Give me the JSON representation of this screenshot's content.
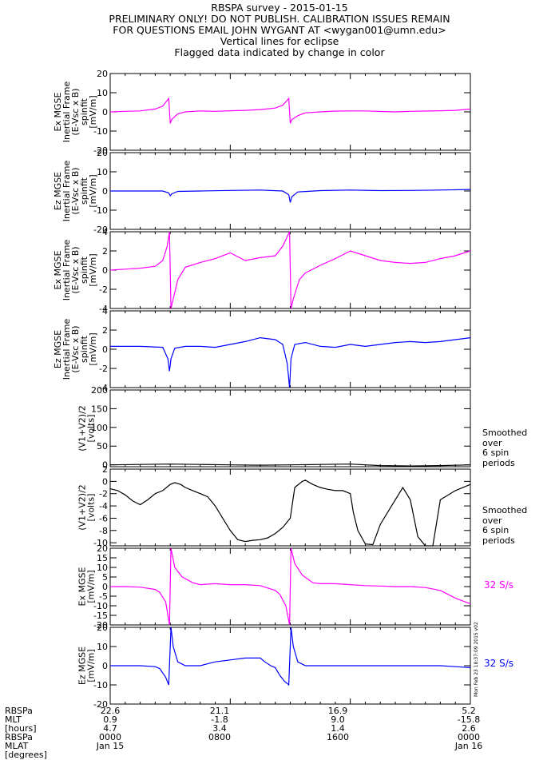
{
  "header": {
    "line1": "RBSPA survey - 2015-01-15",
    "line2": "PRELIMINARY ONLY! DO NOT PUBLISH. CALIBRATION ISSUES REMAIN",
    "line3": "FOR QUESTIONS EMAIL JOHN WYGANT AT <wygan001@umn.edu>",
    "line4": "Vertical lines for eclipse",
    "line5": "Flagged data indicated by change in color"
  },
  "colors": {
    "magenta": "#ff00ff",
    "blue": "#0000ff",
    "black": "#000000"
  },
  "side_notes": {
    "smoothed_1": [
      "Smoothed",
      "over",
      "6 spin",
      "periods"
    ],
    "smoothed_2": [
      "Smoothed",
      "over",
      "6 spin",
      "periods"
    ],
    "rate_7": "32 S/s",
    "rate_8": "32 S/s"
  },
  "stamp": "Mon Feb 23 18:37:09 2015 v02",
  "footer": {
    "labels": [
      "RBSPa",
      "MLT",
      "[hours]",
      "RBSPa",
      "MLAT",
      "[degrees]"
    ],
    "columns": [
      {
        "lines": [
          "22.6",
          "0.9",
          "4.7",
          "0000",
          "Jan 15"
        ]
      },
      {
        "lines": [
          "21.1",
          "-1.8",
          "3.4",
          "0800",
          ""
        ]
      },
      {
        "lines": [
          "16.9",
          "9.0",
          "1.4",
          "1600",
          ""
        ]
      },
      {
        "lines": [
          "5.2",
          "-15.8",
          "2.6",
          "0000",
          "Jan 16"
        ]
      }
    ]
  },
  "chart_data": [
    {
      "type": "line",
      "ylabel": "Ex MGSE Inertial Frame (E-Vsc x B) spinfit [mV/m]",
      "yticks": [
        -20,
        -10,
        0,
        10,
        20
      ],
      "ylim": [
        -20,
        20
      ],
      "color": "magenta",
      "series": [
        {
          "x": [
            0,
            1,
            2,
            3,
            3.5,
            3.9,
            4,
            4.1,
            4.5,
            5,
            6,
            7,
            8,
            9,
            10,
            11,
            11.5,
            11.9,
            12,
            12.1,
            12.5,
            13,
            14,
            15,
            16,
            17,
            18,
            19,
            20,
            21,
            22,
            23,
            24
          ],
          "values": [
            0,
            0.3,
            0.5,
            1.5,
            3,
            7,
            -6,
            -4,
            -1,
            0,
            0.5,
            0.3,
            0.6,
            0.8,
            1.2,
            2,
            3.5,
            7,
            -6,
            -4,
            -2,
            -0.5,
            0,
            0.4,
            0.5,
            0.5,
            0.2,
            0,
            0.3,
            0.4,
            0.6,
            0.8,
            1.5
          ]
        }
      ]
    },
    {
      "type": "line",
      "ylabel": "Ez MGSE Inertial Frame (E-Vsc x B) spinfit [mV/m]",
      "yticks": [
        -20,
        -10,
        0,
        10,
        20
      ],
      "ylim": [
        -20,
        20
      ],
      "color": "blue",
      "series": [
        {
          "x": [
            0,
            2,
            3.5,
            3.9,
            4,
            4.1,
            4.5,
            6,
            8,
            10,
            11.5,
            11.9,
            12,
            12.1,
            12.5,
            14,
            16,
            18,
            20,
            22,
            24
          ],
          "values": [
            0,
            0,
            0,
            -1,
            -2.5,
            -1.5,
            -0.2,
            0,
            0.3,
            0.5,
            0,
            -2,
            -6,
            -3,
            -0.5,
            0.2,
            0.5,
            0.2,
            0.3,
            0.5,
            0.8
          ]
        }
      ]
    },
    {
      "type": "line",
      "ylabel": "Ex MGSE Inertial Frame (E-Vsc x B) spinfit [mV/m]",
      "yticks": [
        -4,
        -2,
        0,
        2,
        4
      ],
      "ylim": [
        -4,
        4
      ],
      "color": "magenta",
      "series": [
        {
          "x": [
            0,
            1,
            2,
            3,
            3.5,
            3.8,
            3.95,
            4.05,
            4.2,
            4.5,
            5,
            6,
            7,
            8,
            9,
            10,
            11,
            11.5,
            11.8,
            11.95,
            12.05,
            12.2,
            12.6,
            13,
            14,
            15,
            16,
            17,
            18,
            19,
            20,
            21,
            22,
            23,
            24
          ],
          "values": [
            0,
            0.1,
            0.2,
            0.4,
            1,
            2.5,
            4,
            -4,
            -3,
            -1,
            0.3,
            0.8,
            1.2,
            1.8,
            1.0,
            1.3,
            1.5,
            2.5,
            3.5,
            4,
            -4,
            -3,
            -1,
            -0.3,
            0.5,
            1.2,
            2,
            1.5,
            1,
            0.8,
            0.7,
            0.8,
            1.2,
            1.5,
            2
          ]
        }
      ]
    },
    {
      "type": "line",
      "ylabel": "Ez MGSE Inertial Frame (E-Vsc x B) spinfit [mV/m]",
      "yticks": [
        -4,
        -2,
        0,
        2,
        4
      ],
      "ylim": [
        -4,
        4
      ],
      "color": "blue",
      "series": [
        {
          "x": [
            0,
            2,
            3.5,
            3.85,
            3.95,
            4.05,
            4.3,
            5,
            6,
            7,
            8,
            9,
            10,
            11,
            11.5,
            11.8,
            11.95,
            12.05,
            12.3,
            13,
            14,
            15,
            16,
            17,
            18,
            19,
            20,
            21,
            22,
            23,
            24
          ],
          "values": [
            0.3,
            0.3,
            0.2,
            -1,
            -2.3,
            -1,
            0.1,
            0.3,
            0.3,
            0.2,
            0.5,
            0.8,
            1.2,
            1,
            0.5,
            -1.5,
            -4,
            -1,
            0.5,
            0.7,
            0.3,
            0.2,
            0.5,
            0.3,
            0.5,
            0.7,
            0.8,
            0.7,
            0.8,
            1,
            1.2
          ]
        }
      ]
    },
    {
      "type": "line",
      "ylabel": "(V1+V2)/2 [volts]",
      "yticks": [
        0,
        50,
        100,
        150,
        200
      ],
      "ylim": [
        -5,
        200
      ],
      "color": "black",
      "series": [
        {
          "x": [
            0,
            2,
            4,
            6,
            8,
            10,
            12,
            14,
            16,
            18,
            20,
            22,
            24
          ],
          "values": [
            0,
            1,
            2,
            1,
            0,
            -1,
            0,
            1,
            2,
            -2,
            -3,
            -2,
            0
          ]
        }
      ]
    },
    {
      "type": "line",
      "ylabel": "(V1+V2)/2 [volts]",
      "yticks": [
        -10,
        -8,
        -6,
        -4,
        -2,
        0,
        2
      ],
      "ylim": [
        -10.5,
        2
      ],
      "color": "black",
      "series": [
        {
          "x": [
            0,
            0.5,
            1,
            1.5,
            2,
            2.5,
            3,
            3.5,
            4,
            4.3,
            4.7,
            5,
            5.5,
            6,
            6.5,
            7,
            7.5,
            8,
            8.5,
            9,
            9.5,
            10,
            10.5,
            11,
            11.5,
            12,
            12.3,
            12.8,
            13,
            13.5,
            14,
            14.5,
            15,
            15.5,
            16,
            16.2,
            16.5,
            17,
            17.5,
            18,
            18.5,
            19,
            19.5,
            20,
            20.5,
            21,
            21.5,
            22,
            23,
            24
          ],
          "values": [
            -1.2,
            -1.5,
            -2.2,
            -3.2,
            -3.8,
            -3,
            -2,
            -1.5,
            -0.5,
            -0.2,
            -0.5,
            -1,
            -1.5,
            -2,
            -2.5,
            -4,
            -6,
            -8,
            -9.5,
            -9.8,
            -9.6,
            -9.5,
            -9.2,
            -8.5,
            -7.5,
            -6,
            -1,
            0,
            0.2,
            -0.5,
            -1,
            -1.3,
            -1.5,
            -1.5,
            -2,
            -5,
            -8,
            -10.2,
            -10.3,
            -7,
            -5,
            -3,
            -1,
            -3,
            -9,
            -10.5,
            -10.5,
            -3,
            -1.5,
            -0.5
          ]
        }
      ]
    },
    {
      "type": "line",
      "ylabel": "Ex MGSE [mV/m]",
      "yticks": [
        -20,
        -15,
        -10,
        -5,
        0,
        5,
        10,
        15,
        20
      ],
      "ylim": [
        -20,
        20
      ],
      "color": "magenta",
      "series": [
        {
          "x": [
            0,
            1,
            2,
            3,
            3.3,
            3.7,
            3.95,
            4.05,
            4.3,
            4.8,
            5.5,
            6,
            7,
            8,
            9,
            10,
            11,
            11.3,
            11.7,
            11.95,
            12.05,
            12.3,
            12.8,
            13.5,
            14,
            15,
            16,
            17,
            18,
            19,
            20,
            21,
            22,
            23,
            24
          ],
          "values": [
            0,
            0,
            -0.3,
            -1.5,
            -3,
            -8,
            -20,
            20,
            10,
            5,
            2,
            1,
            1.5,
            1,
            1,
            0.5,
            -2,
            -4,
            -10,
            -20,
            20,
            12,
            6,
            2,
            1.5,
            1.5,
            1,
            0.5,
            0.3,
            0,
            0,
            -0.5,
            -2,
            -6,
            -9
          ]
        }
      ]
    },
    {
      "type": "line",
      "ylabel": "Ez MGSE [mV/m]",
      "yticks": [
        -20,
        -10,
        0,
        10,
        20
      ],
      "ylim": [
        -20,
        20
      ],
      "color": "blue",
      "series": [
        {
          "x": [
            0,
            1,
            2,
            3,
            3.3,
            3.7,
            3.9,
            4.05,
            4.2,
            4.5,
            5,
            6,
            6.5,
            7,
            8,
            9,
            10,
            10.3,
            10.7,
            11,
            11.3,
            11.6,
            11.9,
            12.05,
            12.2,
            12.5,
            13,
            14,
            15,
            16,
            17,
            18,
            19,
            20,
            21,
            22,
            23,
            24
          ],
          "values": [
            0,
            0,
            0,
            -0.5,
            -1.5,
            -6,
            -10,
            22,
            10,
            2,
            0,
            0,
            1,
            2,
            3,
            4,
            4,
            2,
            0,
            -1,
            -5,
            -8,
            -10,
            20,
            10,
            2,
            0,
            0,
            0,
            0,
            0,
            0,
            0,
            0,
            0,
            0,
            -0.5,
            -1
          ]
        }
      ]
    }
  ]
}
